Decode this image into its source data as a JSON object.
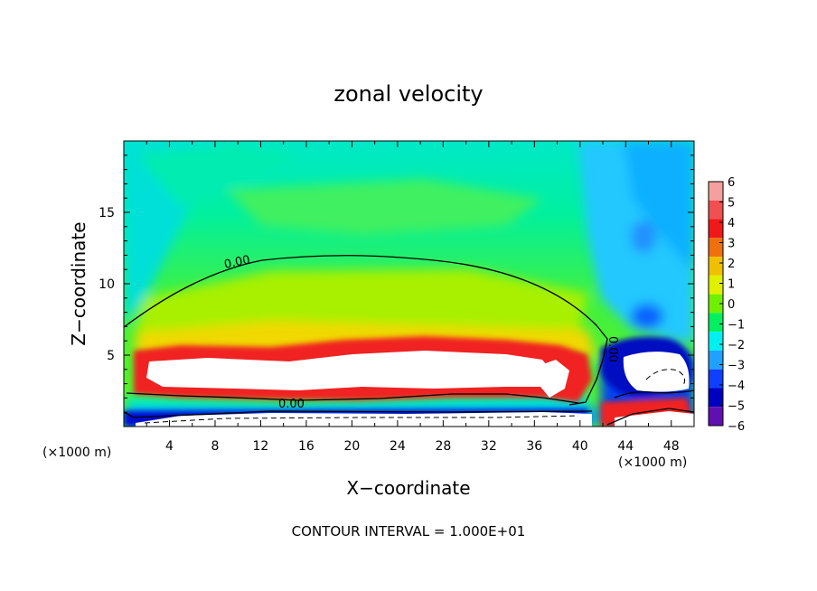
{
  "chart_data": {
    "type": "heatmap",
    "title": "zonal velocity",
    "xlabel": "X−coordinate",
    "ylabel": "Z−coordinate",
    "x_unit_left": "(×1000 m)",
    "x_unit_right": "(×1000 m)",
    "xlim": [
      0,
      50
    ],
    "ylim": [
      0,
      20
    ],
    "x_ticks": [
      4,
      8,
      12,
      16,
      20,
      24,
      28,
      32,
      36,
      40,
      44,
      48
    ],
    "y_ticks": [
      5,
      10,
      15
    ],
    "colorbar": {
      "levels": [
        6,
        5,
        4,
        3,
        2,
        1,
        0,
        -1,
        -2,
        -3,
        -4,
        -5,
        -6
      ],
      "labels": [
        "6",
        "5",
        "4",
        "3",
        "2",
        "1",
        "0",
        "−1",
        "−2",
        "−3",
        "−4",
        "−5",
        "−6"
      ],
      "colors": [
        "#f4a0a0",
        "#f05050",
        "#f01818",
        "#f07010",
        "#f0c000",
        "#e0f000",
        "#70f000",
        "#00f060",
        "#00f0f0",
        "#20a0ff",
        "#1040ff",
        "#0000c0",
        "#6010b0"
      ]
    },
    "contour_labels": [
      "0.00",
      "0.00",
      "0.00"
    ],
    "footnote": "CONTOUR INTERVAL = 1.000E+01"
  }
}
